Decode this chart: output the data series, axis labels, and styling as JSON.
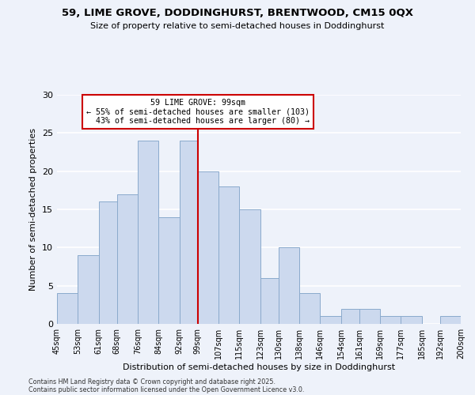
{
  "title": "59, LIME GROVE, DODDINGHURST, BRENTWOOD, CM15 0QX",
  "subtitle": "Size of property relative to semi-detached houses in Doddinghurst",
  "xlabel": "Distribution of semi-detached houses by size in Doddinghurst",
  "ylabel": "Number of semi-detached properties",
  "bin_edges": [
    45,
    53,
    61,
    68,
    76,
    84,
    92,
    99,
    107,
    115,
    123,
    130,
    138,
    146,
    154,
    161,
    169,
    177,
    185,
    192,
    200
  ],
  "bin_labels": [
    "45sqm",
    "53sqm",
    "61sqm",
    "68sqm",
    "76sqm",
    "84sqm",
    "92sqm",
    "99sqm",
    "107sqm",
    "115sqm",
    "123sqm",
    "130sqm",
    "138sqm",
    "146sqm",
    "154sqm",
    "161sqm",
    "169sqm",
    "177sqm",
    "185sqm",
    "192sqm",
    "200sqm"
  ],
  "counts": [
    4,
    9,
    16,
    17,
    24,
    14,
    24,
    20,
    18,
    15,
    6,
    10,
    4,
    1,
    2,
    2,
    1,
    1,
    0,
    1
  ],
  "bar_color": "#ccd9ee",
  "bar_edge_color": "#8aaacc",
  "property_value": 99,
  "vline_color": "#cc0000",
  "annotation_title": "59 LIME GROVE: 99sqm",
  "annotation_line1": "← 55% of semi-detached houses are smaller (103)",
  "annotation_line2": "  43% of semi-detached houses are larger (80) →",
  "annotation_box_color": "#ffffff",
  "annotation_box_edge": "#cc0000",
  "ylim": [
    0,
    30
  ],
  "yticks": [
    0,
    5,
    10,
    15,
    20,
    25,
    30
  ],
  "background_color": "#eef2fa",
  "grid_color": "#ffffff",
  "footer1": "Contains HM Land Registry data © Crown copyright and database right 2025.",
  "footer2": "Contains public sector information licensed under the Open Government Licence v3.0."
}
